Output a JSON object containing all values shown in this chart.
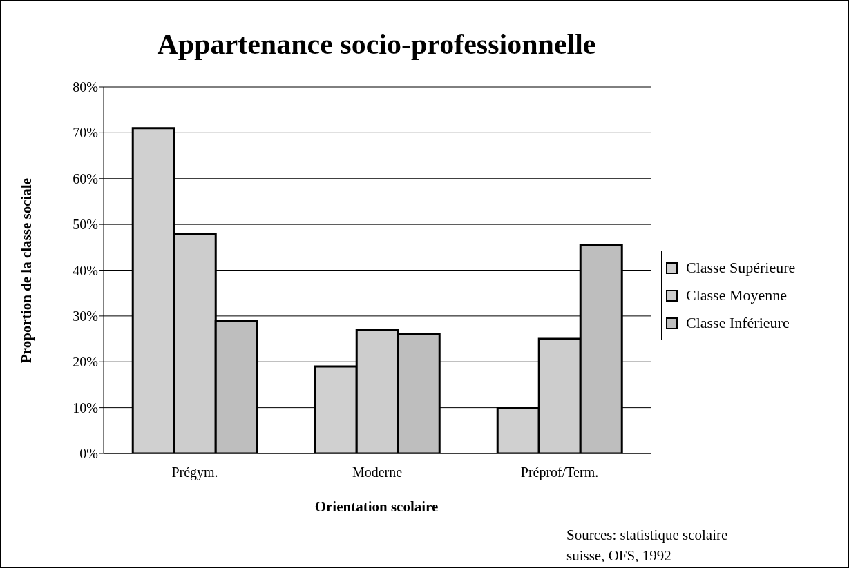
{
  "chart_data": {
    "type": "bar",
    "title": "Appartenance socio-professionnelle",
    "xlabel": "Orientation scolaire",
    "ylabel": "Proportion de la classe sociale",
    "categories": [
      "Prégym.",
      "Moderne",
      "Préprof/Term."
    ],
    "series": [
      {
        "name": "Classe Supérieure",
        "color": "#d0d0d0",
        "values": [
          71,
          19,
          10
        ]
      },
      {
        "name": "Classe Moyenne",
        "color": "#cdcdcd",
        "values": [
          48,
          27,
          25
        ]
      },
      {
        "name": "Classe Inférieure",
        "color": "#bebebe",
        "values": [
          29,
          26,
          45.5
        ]
      }
    ],
    "ylim": [
      0,
      80
    ],
    "yticks": [
      {
        "value": 0,
        "label": "0%"
      },
      {
        "value": 10,
        "label": "10%"
      },
      {
        "value": 20,
        "label": "20%"
      },
      {
        "value": 30,
        "label": "30%"
      },
      {
        "value": 40,
        "label": "40%"
      },
      {
        "value": 50,
        "label": "50%"
      },
      {
        "value": 60,
        "label": "60%"
      },
      {
        "value": 70,
        "label": "70%"
      },
      {
        "value": 80,
        "label": "80%"
      }
    ],
    "grid": "y",
    "legend": "right",
    "annotations": [
      "Sources: statistique scolaire\nsuisse, OFS, 1992"
    ]
  }
}
